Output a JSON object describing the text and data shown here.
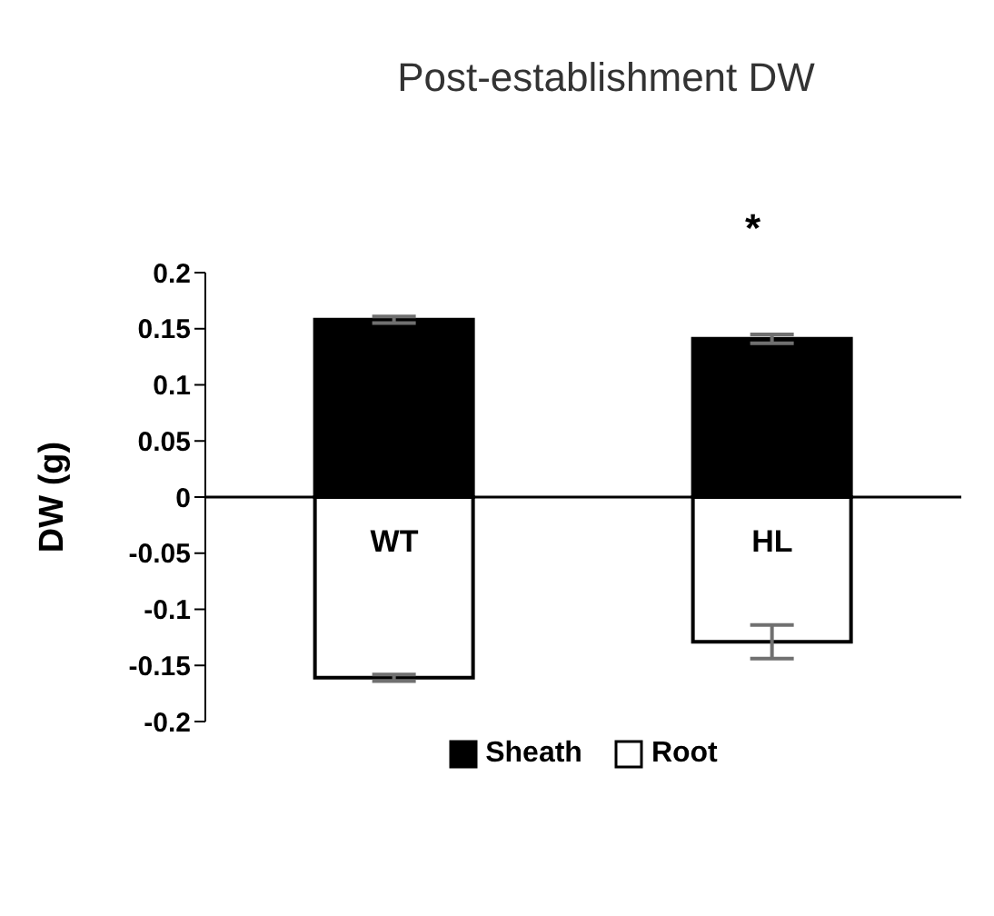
{
  "chart_data": {
    "type": "bar",
    "title": "Post-establishment DW",
    "ylabel": "DW (g)",
    "categories": [
      "WT",
      "HL"
    ],
    "stacked": true,
    "series": [
      {
        "name": "Sheath",
        "color": "#000000",
        "values": [
          0.158,
          0.141
        ],
        "errors": [
          0.003,
          0.004
        ]
      },
      {
        "name": "Root",
        "color": "#ffffff",
        "values": [
          -0.161,
          -0.129
        ],
        "errors": [
          0.003,
          0.015
        ]
      }
    ],
    "ylim": [
      -0.2,
      0.2
    ],
    "yticks": [
      -0.2,
      -0.15,
      -0.1,
      -0.05,
      0,
      0.05,
      0.1,
      0.15,
      0.2
    ],
    "grid": false,
    "legend": "bottom",
    "annotations": [
      "*"
    ]
  }
}
